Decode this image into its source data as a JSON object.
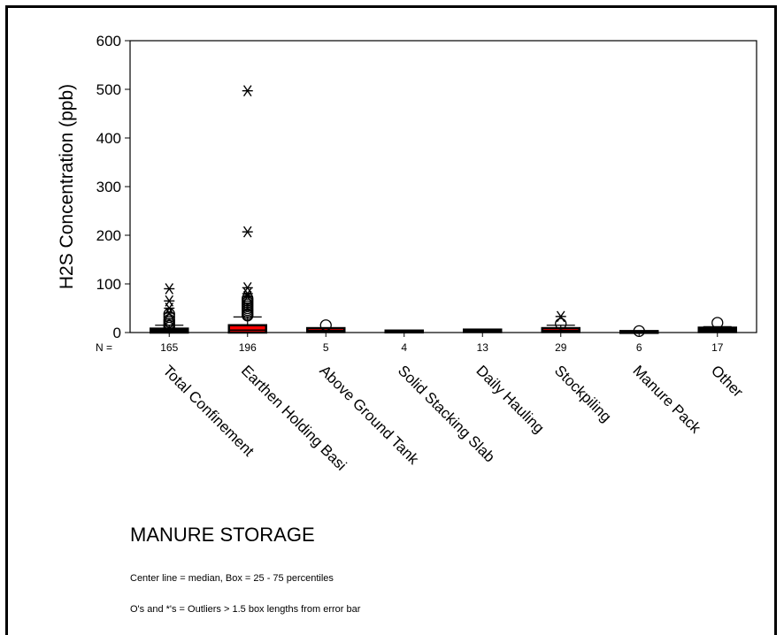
{
  "chart_data": {
    "type": "box",
    "ylabel": "H2S Concentration (ppb)",
    "xlabel": "MANURE STORAGE",
    "ylim": [
      0,
      600
    ],
    "yticks": [
      0,
      100,
      200,
      300,
      400,
      500,
      600
    ],
    "n_label": "N =",
    "categories": [
      {
        "label": "Total Confinement",
        "n": "165",
        "q1": 0,
        "median": 2,
        "q3": 8,
        "whisker_low": 0,
        "whisker_high": 15,
        "color": "#000000",
        "outliers_o": [
          10,
          14,
          18,
          22,
          26,
          32,
          38
        ],
        "outliers_star": [
          40,
          50,
          65,
          90
        ]
      },
      {
        "label": "Earthen Holding Basi",
        "n": "196",
        "q1": 0,
        "median": 5,
        "q3": 15,
        "whisker_low": 0,
        "whisker_high": 32,
        "color": "#ff0000",
        "outliers_o": [
          35,
          38,
          42,
          46,
          50,
          54,
          58,
          62,
          66,
          70
        ],
        "outliers_star": [
          74,
          80,
          92,
          207,
          497
        ]
      },
      {
        "label": "Above Ground Tank",
        "n": "5",
        "q1": 1,
        "median": 4,
        "q3": 9,
        "whisker_low": 1,
        "whisker_high": 9,
        "color": "#ff0000",
        "outliers_o": [
          15
        ],
        "outliers_star": []
      },
      {
        "label": "Solid Stacking Slab",
        "n": "4",
        "q1": 1,
        "median": 2,
        "q3": 4,
        "whisker_low": 1,
        "whisker_high": 4,
        "color": "#000000",
        "outliers_o": [],
        "outliers_star": []
      },
      {
        "label": "Daily Hauling",
        "n": "13",
        "q1": 1,
        "median": 3,
        "q3": 6,
        "whisker_low": 1,
        "whisker_high": 7,
        "color": "#000000",
        "outliers_o": [],
        "outliers_star": []
      },
      {
        "label": "Stockpiling",
        "n": "29",
        "q1": 1,
        "median": 4,
        "q3": 9,
        "whisker_low": 0,
        "whisker_high": 15,
        "color": "#ff0000",
        "outliers_o": [
          18
        ],
        "outliers_star": [
          33
        ]
      },
      {
        "label": "Manure Pack",
        "n": "6",
        "q1": 0,
        "median": 1,
        "q3": 3,
        "whisker_low": 0,
        "whisker_high": 3,
        "color": "#000000",
        "outliers_o": [
          3
        ],
        "outliers_star": []
      },
      {
        "label": "Other",
        "n": "17",
        "q1": 1,
        "median": 5,
        "q3": 10,
        "whisker_low": 1,
        "whisker_high": 12,
        "color": "#000000",
        "outliers_o": [
          20
        ],
        "outliers_star": []
      }
    ]
  },
  "notes": {
    "line1": "Center line = median, Box = 25 - 75 percentiles",
    "line2": "O's and *'s = Outliers > 1.5 box lengths from error bar"
  }
}
